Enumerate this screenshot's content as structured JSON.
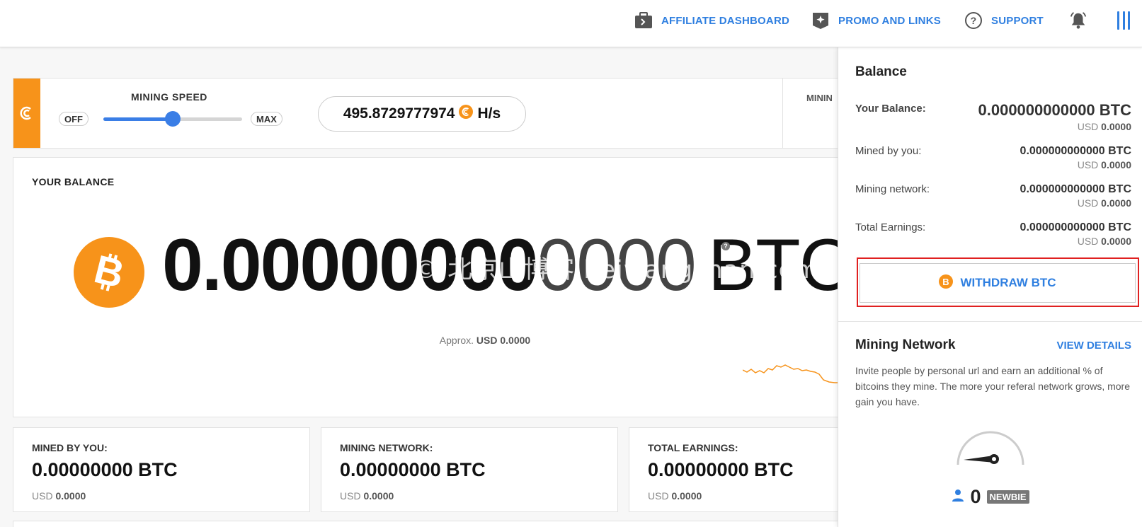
{
  "header": {
    "nav": [
      {
        "label": "AFFILIATE DASHBOARD",
        "icon": "briefcase-icon"
      },
      {
        "label": "PROMO AND LINKS",
        "icon": "promo-badge-icon"
      },
      {
        "label": "SUPPORT",
        "icon": "question-circle-icon"
      }
    ],
    "bell_icon": "bell-icon",
    "menu_icon": "menu-bars-icon"
  },
  "mining_speed": {
    "title": "MINING SPEED",
    "off_label": "OFF",
    "max_label": "MAX",
    "level": 0.5,
    "hashrate": "495.8729777974",
    "hashrate_unit": "H/s",
    "right_label": "MININ"
  },
  "balance": {
    "title": "YOUR BALANCE",
    "amount_bold": "0.00000000",
    "amount_dim": "0000",
    "unit": "BTC",
    "help": "?",
    "watermark": "© 北京山博客 beiwangshan.com",
    "approx_label": "Approx.",
    "approx_value": "USD 0.0000"
  },
  "stats": [
    {
      "label": "MINED BY YOU:",
      "value": "0.00000000 BTC",
      "usd_prefix": "USD",
      "usd_value": "0.0000"
    },
    {
      "label": "MINING NETWORK:",
      "value": "0.00000000 BTC",
      "usd_prefix": "USD",
      "usd_value": "0.0000"
    },
    {
      "label": "TOTAL EARNINGS:",
      "value": "0.00000000 BTC",
      "usd_prefix": "USD",
      "usd_value": "0.0000"
    }
  ],
  "sidebar": {
    "title": "Balance",
    "rows": [
      {
        "label": "Your Balance:",
        "value": "0.000000000000 BTC",
        "usd_prefix": "USD",
        "usd_value": "0.0000"
      },
      {
        "label": "Mined by you:",
        "value": "0.000000000000 BTC",
        "usd_prefix": "USD",
        "usd_value": "0.0000"
      },
      {
        "label": "Mining network:",
        "value": "0.000000000000 BTC",
        "usd_prefix": "USD",
        "usd_value": "0.0000"
      },
      {
        "label": "Total Earnings:",
        "value": "0.000000000000 BTC",
        "usd_prefix": "USD",
        "usd_value": "0.0000"
      }
    ],
    "withdraw_label": "WITHDRAW BTC",
    "network_title": "Mining Network",
    "view_details": "VIEW DETAILS",
    "network_desc": "Invite people by personal url and earn an additional % of bitcoins they mine. The more your referal network grows, more gain you have.",
    "referrals": "0",
    "rank": "NEWBIE"
  },
  "colors": {
    "accent": "#2f7fe0",
    "btc_orange": "#f7931a",
    "highlight": "#e02020"
  }
}
